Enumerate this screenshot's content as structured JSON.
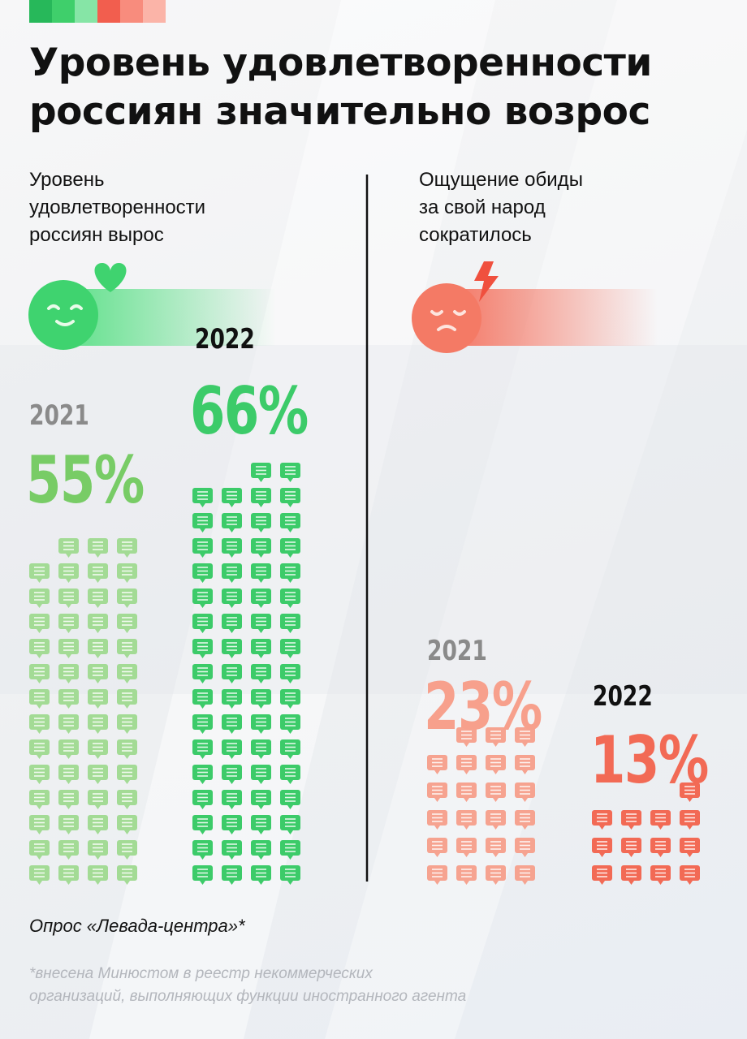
{
  "title": "Уровень удовлетворенности\nроссиян значительно возрос",
  "chart_data": [
    {
      "type": "pictogram",
      "title": "Уровень\nудовлетворенности\nроссиян вырос",
      "categories": [
        "2021",
        "2022"
      ],
      "values": [
        55,
        66
      ],
      "value_labels": [
        "55%",
        "66%"
      ],
      "colors": [
        "#a3db95",
        "#3ccb69"
      ],
      "label_colors": [
        "#78cc66",
        "#3ccb69"
      ]
    },
    {
      "type": "pictogram",
      "title": "Ощущение обиды\nза свой народ\nсократилось",
      "categories": [
        "2021",
        "2022"
      ],
      "values": [
        23,
        13
      ],
      "value_labels": [
        "23%",
        "13%"
      ],
      "colors": [
        "#f6a390",
        "#f26a55"
      ],
      "label_colors": [
        "#f7a08c",
        "#f26a55"
      ]
    }
  ],
  "source": "Опрос «Левада-центра»*",
  "footnote": "*внесена Минюстом в реестр некоммерческих\nорганизаций, выполняющих функции иностранного агента"
}
